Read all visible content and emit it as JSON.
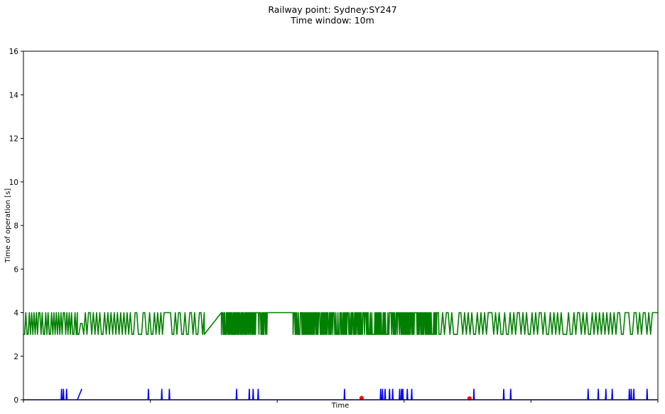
{
  "chart_data": {
    "type": "line",
    "title": "Railway point: Sydney:SY247",
    "subtitle": "Time window: 10m",
    "xlabel": "Time",
    "ylabel": "Time of operation [s]",
    "ylim": [
      0,
      16
    ],
    "yticks": [
      "0",
      "2",
      "4",
      "6",
      "8",
      "10",
      "12",
      "14",
      "16"
    ],
    "xlim": [
      0,
      1000
    ],
    "xticks": [
      0,
      200,
      400,
      600,
      800,
      1000
    ],
    "grid": false,
    "colors": {
      "green_series": "#008000",
      "blue_series": "#0000ff",
      "red_points": "#ff0000"
    },
    "series": [
      {
        "kind": "oscillating",
        "color": "green",
        "segments": [
          {
            "x0": 0,
            "x1": 85,
            "low": 3,
            "high": 4,
            "toggles": 46
          },
          {
            "x0": 85,
            "x1": 95,
            "low": 3,
            "high": 3.5,
            "toggles": 4
          },
          {
            "x0": 95,
            "x1": 285,
            "low": 3,
            "high": 4,
            "toggles": 75
          },
          {
            "x0": 285,
            "x1": 312,
            "ramp_from": 3,
            "ramp_to": 4
          },
          {
            "x0": 312,
            "x1": 385,
            "low": 3,
            "high": 4,
            "toggles": 110
          },
          {
            "x0": 385,
            "x1": 425,
            "flat": 4
          },
          {
            "x0": 425,
            "x1": 655,
            "low": 3,
            "high": 4,
            "toggles": 280
          },
          {
            "x0": 655,
            "x1": 1000,
            "low": 3,
            "high": 4,
            "toggles": 120
          }
        ]
      },
      {
        "kind": "spikes",
        "color": "blue",
        "baseline": 0,
        "height": 0.5,
        "x": [
          60,
          63,
          68,
          197,
          218,
          230,
          336,
          356,
          362,
          370,
          506,
          563,
          566,
          570,
          577,
          582,
          593,
          596,
          598,
          605,
          612,
          710,
          757,
          768,
          890,
          906,
          918,
          928,
          955,
          958,
          962,
          983
        ],
        "ramp": {
          "x0": 85,
          "x1": 92,
          "from": 0,
          "to": 0.5
        }
      },
      {
        "kind": "points",
        "color": "red",
        "points": [
          [
            533,
            0.08
          ],
          [
            703,
            0.06
          ]
        ]
      }
    ]
  }
}
